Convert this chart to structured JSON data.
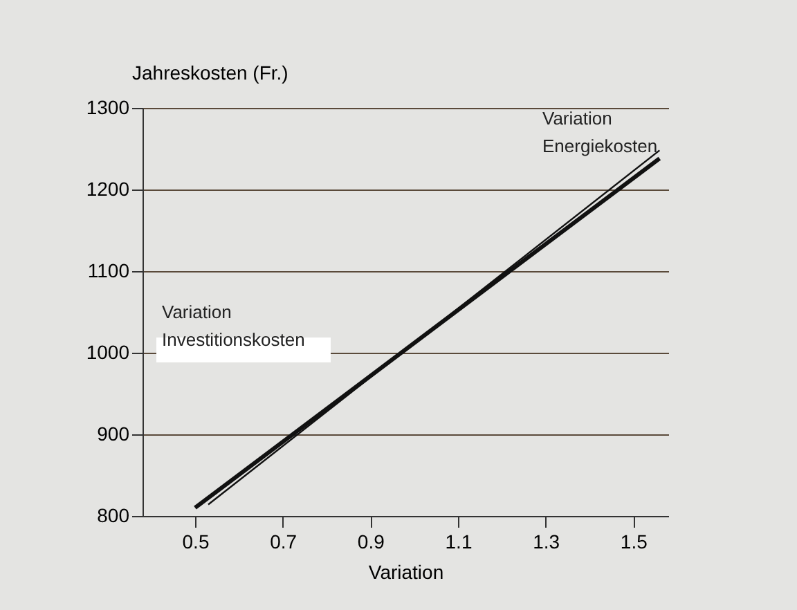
{
  "chart_data": {
    "type": "line",
    "xlabel": "Variation",
    "ylabel": "Jahreskosten (Fr.)",
    "xlim": [
      0.38,
      1.58
    ],
    "xticks": [
      0.5,
      0.7,
      0.9,
      1.1,
      1.3,
      1.5
    ],
    "ylim": [
      800,
      1300
    ],
    "yticks": [
      800,
      900,
      {
        "value": 1000,
        "label": "1000"
      },
      {
        "value": 1100,
        "label": "1100"
      },
      {
        "value": 1200,
        "label": "1200"
      },
      {
        "value": 1300,
        "label": "1300"
      }
    ],
    "grid": "y",
    "series": [
      {
        "color": "#111111",
        "x": [
          0.5,
          1.56
        ],
        "values": [
          810,
          1238
        ]
      },
      {
        "color": "#111111",
        "x": [
          0.53,
          1.56
        ],
        "values": [
          814,
          1248
        ]
      }
    ],
    "annotations": [
      "Variation\nEnergiekosten",
      "Variation\nInvestitionskosten"
    ]
  }
}
